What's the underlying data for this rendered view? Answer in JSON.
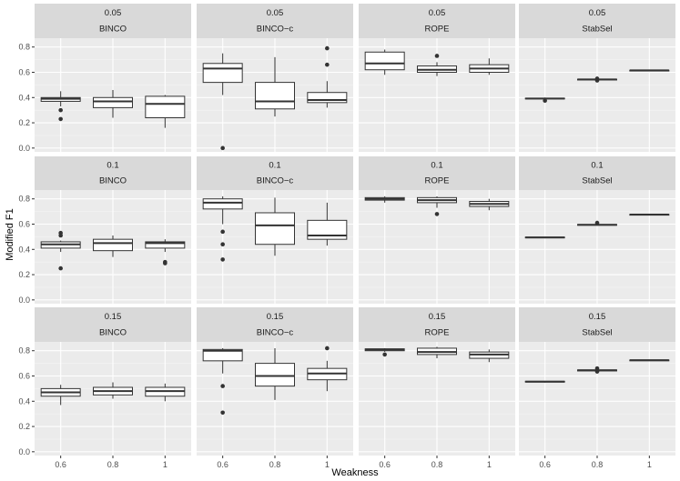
{
  "chart_data": {
    "type": "boxplot",
    "layout": "facet_grid",
    "xlabel": "Weakness",
    "ylabel": "Modified F1",
    "ylim": [
      -0.03,
      0.87
    ],
    "yticks": [
      "0.0",
      "0.2",
      "0.4",
      "0.6",
      "0.8"
    ],
    "ytick_values": [
      0,
      0.2,
      0.4,
      0.6,
      0.8
    ],
    "categories": [
      "0.6",
      "0.8",
      "1"
    ],
    "row_labels": [
      "0.05",
      "0.1",
      "0.15"
    ],
    "col_labels": [
      "BINCO",
      "BINCO−c",
      "ROPE",
      "StabSel"
    ],
    "panels": [
      {
        "row": "0.05",
        "method": "BINCO",
        "boxes": [
          {
            "x": "0.6",
            "wlo": 0.33,
            "q1": 0.37,
            "med": 0.39,
            "q3": 0.4,
            "whi": 0.45,
            "out": [
              0.3,
              0.23
            ]
          },
          {
            "x": "0.8",
            "wlo": 0.24,
            "q1": 0.32,
            "med": 0.37,
            "q3": 0.4,
            "whi": 0.46,
            "out": []
          },
          {
            "x": "1",
            "wlo": 0.16,
            "q1": 0.24,
            "med": 0.35,
            "q3": 0.41,
            "whi": 0.42,
            "out": []
          }
        ]
      },
      {
        "row": "0.05",
        "method": "BINCO−c",
        "boxes": [
          {
            "x": "0.6",
            "wlo": 0.42,
            "q1": 0.52,
            "med": 0.63,
            "q3": 0.67,
            "whi": 0.75,
            "out": [
              0.0
            ]
          },
          {
            "x": "0.8",
            "wlo": 0.25,
            "q1": 0.31,
            "med": 0.37,
            "q3": 0.52,
            "whi": 0.72,
            "out": []
          },
          {
            "x": "1",
            "wlo": 0.32,
            "q1": 0.36,
            "med": 0.38,
            "q3": 0.44,
            "whi": 0.53,
            "out": [
              0.66,
              0.79
            ]
          }
        ]
      },
      {
        "row": "0.05",
        "method": "ROPE",
        "boxes": [
          {
            "x": "0.6",
            "wlo": 0.58,
            "q1": 0.62,
            "med": 0.67,
            "q3": 0.76,
            "whi": 0.78,
            "out": []
          },
          {
            "x": "0.8",
            "wlo": 0.57,
            "q1": 0.6,
            "med": 0.62,
            "q3": 0.65,
            "whi": 0.68,
            "out": [
              0.73
            ]
          },
          {
            "x": "1",
            "wlo": 0.58,
            "q1": 0.6,
            "med": 0.63,
            "q3": 0.66,
            "whi": 0.71,
            "out": []
          }
        ]
      },
      {
        "row": "0.05",
        "method": "StabSel",
        "boxes": [
          {
            "x": "0.6",
            "wlo": 0.385,
            "q1": 0.39,
            "med": 0.392,
            "q3": 0.395,
            "whi": 0.4,
            "out": [
              0.375
            ]
          },
          {
            "x": "0.8",
            "wlo": 0.535,
            "q1": 0.541,
            "med": 0.543,
            "q3": 0.545,
            "whi": 0.55,
            "out": [
              0.535,
              0.55
            ]
          },
          {
            "x": "1",
            "wlo": 0.612,
            "q1": 0.614,
            "med": 0.615,
            "q3": 0.616,
            "whi": 0.618,
            "out": []
          }
        ]
      },
      {
        "row": "0.1",
        "method": "BINCO",
        "boxes": [
          {
            "x": "0.6",
            "wlo": 0.38,
            "q1": 0.41,
            "med": 0.44,
            "q3": 0.46,
            "whi": 0.47,
            "out": [
              0.53,
              0.51,
              0.25
            ]
          },
          {
            "x": "0.8",
            "wlo": 0.34,
            "q1": 0.39,
            "med": 0.45,
            "q3": 0.48,
            "whi": 0.51,
            "out": []
          },
          {
            "x": "1",
            "wlo": 0.38,
            "q1": 0.41,
            "med": 0.45,
            "q3": 0.46,
            "whi": 0.48,
            "out": [
              0.3,
              0.29
            ]
          }
        ]
      },
      {
        "row": "0.1",
        "method": "BINCO−c",
        "boxes": [
          {
            "x": "0.6",
            "wlo": 0.6,
            "q1": 0.72,
            "med": 0.77,
            "q3": 0.8,
            "whi": 0.82,
            "out": [
              0.54,
              0.44,
              0.32
            ]
          },
          {
            "x": "0.8",
            "wlo": 0.35,
            "q1": 0.44,
            "med": 0.59,
            "q3": 0.69,
            "whi": 0.81,
            "out": []
          },
          {
            "x": "1",
            "wlo": 0.43,
            "q1": 0.48,
            "med": 0.51,
            "q3": 0.63,
            "whi": 0.77,
            "out": []
          }
        ]
      },
      {
        "row": "0.1",
        "method": "ROPE",
        "boxes": [
          {
            "x": "0.6",
            "wlo": 0.77,
            "q1": 0.79,
            "med": 0.8,
            "q3": 0.81,
            "whi": 0.82,
            "out": []
          },
          {
            "x": "0.8",
            "wlo": 0.73,
            "q1": 0.77,
            "med": 0.79,
            "q3": 0.81,
            "whi": 0.82,
            "out": [
              0.68
            ]
          },
          {
            "x": "1",
            "wlo": 0.71,
            "q1": 0.74,
            "med": 0.76,
            "q3": 0.78,
            "whi": 0.8,
            "out": []
          }
        ]
      },
      {
        "row": "0.1",
        "method": "StabSel",
        "boxes": [
          {
            "x": "0.6",
            "wlo": 0.488,
            "q1": 0.493,
            "med": 0.495,
            "q3": 0.497,
            "whi": 0.5,
            "out": []
          },
          {
            "x": "0.8",
            "wlo": 0.59,
            "q1": 0.593,
            "med": 0.595,
            "q3": 0.597,
            "whi": 0.6,
            "out": [
              0.61
            ]
          },
          {
            "x": "1",
            "wlo": 0.673,
            "q1": 0.675,
            "med": 0.676,
            "q3": 0.677,
            "whi": 0.679,
            "out": []
          }
        ]
      },
      {
        "row": "0.15",
        "method": "BINCO",
        "boxes": [
          {
            "x": "0.6",
            "wlo": 0.37,
            "q1": 0.44,
            "med": 0.47,
            "q3": 0.5,
            "whi": 0.53,
            "out": []
          },
          {
            "x": "0.8",
            "wlo": 0.42,
            "q1": 0.45,
            "med": 0.48,
            "q3": 0.51,
            "whi": 0.55,
            "out": []
          },
          {
            "x": "1",
            "wlo": 0.4,
            "q1": 0.44,
            "med": 0.48,
            "q3": 0.51,
            "whi": 0.54,
            "out": []
          }
        ]
      },
      {
        "row": "0.15",
        "method": "BINCO−c",
        "boxes": [
          {
            "x": "0.6",
            "wlo": 0.62,
            "q1": 0.72,
            "med": 0.8,
            "q3": 0.81,
            "whi": 0.82,
            "out": [
              0.52,
              0.31
            ]
          },
          {
            "x": "0.8",
            "wlo": 0.41,
            "q1": 0.52,
            "med": 0.6,
            "q3": 0.7,
            "whi": 0.82,
            "out": []
          },
          {
            "x": "1",
            "wlo": 0.48,
            "q1": 0.57,
            "med": 0.62,
            "q3": 0.66,
            "whi": 0.72,
            "out": [
              0.82
            ]
          }
        ]
      },
      {
        "row": "0.15",
        "method": "ROPE",
        "boxes": [
          {
            "x": "0.6",
            "wlo": 0.79,
            "q1": 0.8,
            "med": 0.81,
            "q3": 0.815,
            "whi": 0.82,
            "out": [
              0.77
            ]
          },
          {
            "x": "0.8",
            "wlo": 0.74,
            "q1": 0.77,
            "med": 0.79,
            "q3": 0.82,
            "whi": 0.83,
            "out": []
          },
          {
            "x": "1",
            "wlo": 0.71,
            "q1": 0.74,
            "med": 0.77,
            "q3": 0.79,
            "whi": 0.81,
            "out": []
          }
        ]
      },
      {
        "row": "0.15",
        "method": "StabSel",
        "boxes": [
          {
            "x": "0.6",
            "wlo": 0.548,
            "q1": 0.552,
            "med": 0.555,
            "q3": 0.558,
            "whi": 0.56,
            "out": []
          },
          {
            "x": "0.8",
            "wlo": 0.635,
            "q1": 0.64,
            "med": 0.645,
            "q3": 0.648,
            "whi": 0.65,
            "out": [
              0.66,
              0.635
            ]
          },
          {
            "x": "1",
            "wlo": 0.722,
            "q1": 0.724,
            "med": 0.725,
            "q3": 0.726,
            "whi": 0.728,
            "out": []
          }
        ]
      }
    ]
  }
}
